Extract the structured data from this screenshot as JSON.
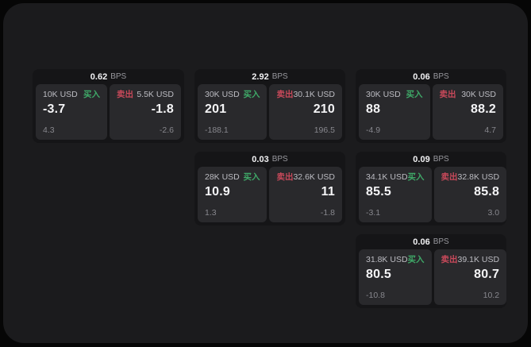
{
  "labels": {
    "buy": "买入",
    "sell": "卖出",
    "bps_unit": "BPS"
  },
  "colors": {
    "buy": "#3fa968",
    "sell": "#c8495a",
    "panel_bg": "#1b1b1d",
    "card_bg": "#151517",
    "tile_bg": "#29292c"
  },
  "cards": [
    {
      "bps": "0.62",
      "buy": {
        "size": "10K USD",
        "price": "-3.7",
        "delta": "4.3"
      },
      "sell": {
        "size": "5.5K USD",
        "price": "-1.8",
        "delta": "-2.6"
      }
    },
    {
      "bps": "2.92",
      "buy": {
        "size": "30K USD",
        "price": "201",
        "delta": "-188.1"
      },
      "sell": {
        "size": "30.1K USD",
        "price": "210",
        "delta": "196.5"
      }
    },
    {
      "bps": "0.06",
      "buy": {
        "size": "30K USD",
        "price": "88",
        "delta": "-4.9"
      },
      "sell": {
        "size": "30K USD",
        "price": "88.2",
        "delta": "4.7"
      }
    },
    {
      "bps": "0.03",
      "buy": {
        "size": "28K USD",
        "price": "10.9",
        "delta": "1.3"
      },
      "sell": {
        "size": "32.6K USD",
        "price": "11",
        "delta": "-1.8"
      }
    },
    {
      "bps": "0.09",
      "buy": {
        "size": "34.1K USD",
        "price": "85.5",
        "delta": "-3.1"
      },
      "sell": {
        "size": "32.8K USD",
        "price": "85.8",
        "delta": "3.0"
      }
    },
    {
      "bps": "0.06",
      "buy": {
        "size": "31.8K USD",
        "price": "80.5",
        "delta": "-10.8"
      },
      "sell": {
        "size": "39.1K USD",
        "price": "80.7",
        "delta": "10.2"
      }
    }
  ]
}
